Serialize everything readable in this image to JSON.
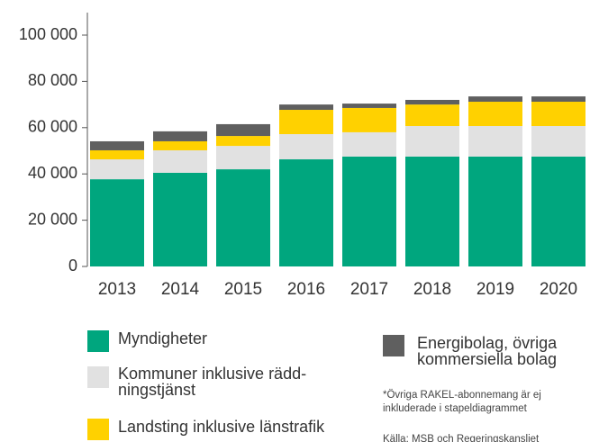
{
  "chart_data": {
    "type": "bar",
    "stacked": true,
    "categories": [
      "2013",
      "2014",
      "2015",
      "2016",
      "2017",
      "2018",
      "2019",
      "2020"
    ],
    "series": [
      {
        "name": "Myndigheter",
        "color": "#00a67e",
        "values": [
          37700,
          40500,
          42000,
          46300,
          47500,
          47500,
          47500,
          47500
        ]
      },
      {
        "name": "Kommuner inklusive rädd-\nningstjänst",
        "color": "#e1e1e1",
        "values": [
          8600,
          9700,
          10100,
          10900,
          10500,
          13200,
          13200,
          13200
        ]
      },
      {
        "name": "Landsting inklusive länstrafik",
        "color": "#ffd100",
        "values": [
          3900,
          3900,
          4300,
          10500,
          10500,
          9300,
          10500,
          10500
        ]
      },
      {
        "name": "Energibolag, övriga\nkommersiella bolag",
        "color": "#5f5f5f",
        "values": [
          3900,
          4300,
          5100,
          2300,
          1900,
          2000,
          2300,
          2300
        ]
      }
    ],
    "ylim": [
      0,
      100000
    ],
    "yticks": [
      0,
      {
        "value": 20000,
        "label": "20 000"
      },
      {
        "value": 40000,
        "label": "40 000"
      },
      {
        "value": 60000,
        "label": "60 000"
      },
      {
        "value": 80000,
        "label": "80 000"
      },
      {
        "value": 100000,
        "label": "100 000"
      }
    ],
    "note": "*Övriga RAKEL-abonnemang är ej\ninkluderade i stapeldiagrammet",
    "source": "Källa: MSB och Regeringskansliet"
  }
}
